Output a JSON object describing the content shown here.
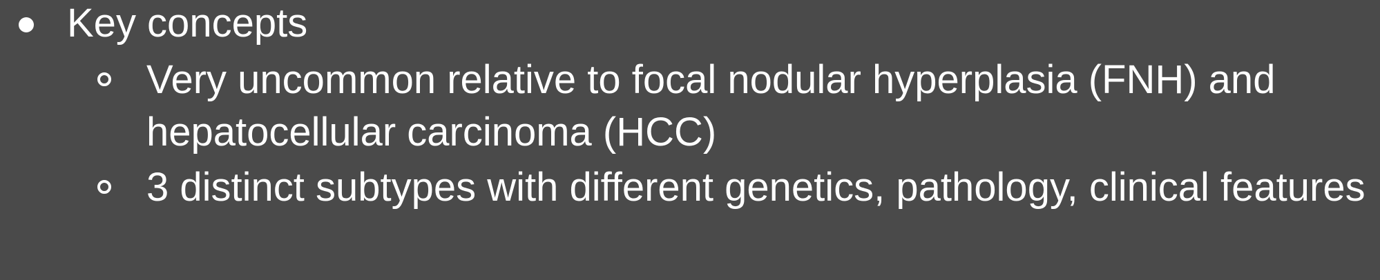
{
  "slide": {
    "level1": {
      "text": "Key concepts"
    },
    "level2": [
      {
        "text": "Very uncommon relative to focal nodular hyperplasia (FNH) and hepatocellular carcinoma (HCC)"
      },
      {
        "text": "3 distinct subtypes with different genetics, pathology, clinical features"
      }
    ]
  }
}
